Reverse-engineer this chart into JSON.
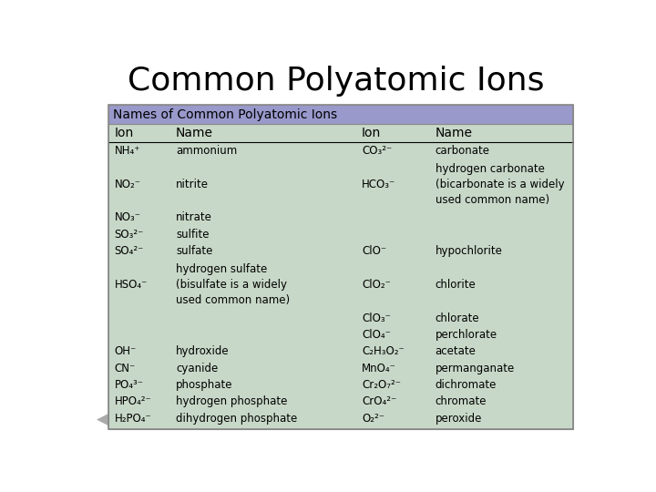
{
  "title": "Common Polyatomic Ions",
  "table_header": "Names of Common Polyatomic Ions",
  "col_headers": [
    "Ion",
    "Name",
    "Ion",
    "Name"
  ],
  "background_color": "#ffffff",
  "table_header_bg": "#9999cc",
  "table_body_bg": "#c8d8c8",
  "title_fontsize": 26,
  "header_fontsize": 10,
  "col_header_fontsize": 10,
  "data_fontsize": 8.5,
  "rows": [
    {
      "left_ion": "NH₄⁺",
      "left_name": "ammonium",
      "right_ion": "CO₃²⁻",
      "right_name": "carbonate"
    },
    {
      "left_ion": "NO₂⁻",
      "left_name": "nitrite",
      "right_ion": "HCO₃⁻",
      "right_name": "hydrogen carbonate\n(bicarbonate is a widely\nused common name)"
    },
    {
      "left_ion": "NO₃⁻",
      "left_name": "nitrate",
      "right_ion": "",
      "right_name": ""
    },
    {
      "left_ion": "SO₃²⁻",
      "left_name": "sulfite",
      "right_ion": "",
      "right_name": ""
    },
    {
      "left_ion": "SO₄²⁻",
      "left_name": "sulfate",
      "right_ion": "ClO⁻",
      "right_name": "hypochlorite"
    },
    {
      "left_ion": "HSO₄⁻",
      "left_name": "hydrogen sulfate\n(bisulfate is a widely\nused common name)",
      "right_ion": "ClO₂⁻",
      "right_name": "chlorite"
    },
    {
      "left_ion": "",
      "left_name": "",
      "right_ion": "ClO₃⁻",
      "right_name": "chlorate"
    },
    {
      "left_ion": "",
      "left_name": "",
      "right_ion": "ClO₄⁻",
      "right_name": "perchlorate"
    },
    {
      "left_ion": "OH⁻",
      "left_name": "hydroxide",
      "right_ion": "C₂H₃O₂⁻",
      "right_name": "acetate"
    },
    {
      "left_ion": "CN⁻",
      "left_name": "cyanide",
      "right_ion": "MnO₄⁻",
      "right_name": "permanganate"
    },
    {
      "left_ion": "PO₄³⁻",
      "left_name": "phosphate",
      "right_ion": "Cr₂O₇²⁻",
      "right_name": "dichromate"
    },
    {
      "left_ion": "HPO₄²⁻",
      "left_name": "hydrogen phosphate",
      "right_ion": "CrO₄²⁻",
      "right_name": "chromate"
    },
    {
      "left_ion": "H₂PO₄⁻",
      "left_name": "dihydrogen phosphate",
      "right_ion": "O₂²⁻",
      "right_name": "peroxide"
    }
  ],
  "row_heights": [
    1,
    3,
    1,
    1,
    1,
    3,
    1,
    1,
    1,
    1,
    1,
    1,
    1
  ]
}
